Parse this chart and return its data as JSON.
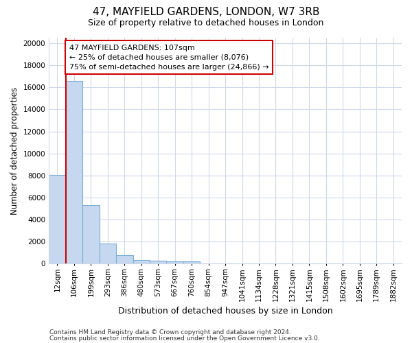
{
  "title1": "47, MAYFIELD GARDENS, LONDON, W7 3RB",
  "title2": "Size of property relative to detached houses in London",
  "xlabel": "Distribution of detached houses by size in London",
  "ylabel": "Number of detached properties",
  "categories": [
    "12sqm",
    "106sqm",
    "199sqm",
    "293sqm",
    "386sqm",
    "480sqm",
    "573sqm",
    "667sqm",
    "760sqm",
    "854sqm",
    "947sqm",
    "1041sqm",
    "1134sqm",
    "1228sqm",
    "1321sqm",
    "1415sqm",
    "1508sqm",
    "1602sqm",
    "1695sqm",
    "1789sqm",
    "1882sqm"
  ],
  "bar_heights": [
    8076,
    16600,
    5300,
    1850,
    750,
    350,
    270,
    200,
    200,
    0,
    0,
    0,
    0,
    0,
    0,
    0,
    0,
    0,
    0,
    0,
    0
  ],
  "bar_color": "#c5d8f0",
  "bar_edge_color": "#7badd4",
  "annotation_line1": "47 MAYFIELD GARDENS: 107sqm",
  "annotation_line2": "← 25% of detached houses are smaller (8,076)",
  "annotation_line3": "75% of semi-detached houses are larger (24,866) →",
  "annotation_box_color": "#ffffff",
  "annotation_box_edge": "#cc0000",
  "red_line_color": "#cc0000",
  "ylim": [
    0,
    20500
  ],
  "yticks": [
    0,
    2000,
    4000,
    6000,
    8000,
    10000,
    12000,
    14000,
    16000,
    18000,
    20000
  ],
  "footer1": "Contains HM Land Registry data © Crown copyright and database right 2024.",
  "footer2": "Contains public sector information licensed under the Open Government Licence v3.0.",
  "background_color": "#ffffff",
  "grid_color": "#d0d8e8",
  "title1_fontsize": 11,
  "title2_fontsize": 9,
  "ylabel_fontsize": 8.5,
  "xlabel_fontsize": 9,
  "tick_fontsize": 7.5,
  "footer_fontsize": 6.5,
  "annot_fontsize": 8
}
